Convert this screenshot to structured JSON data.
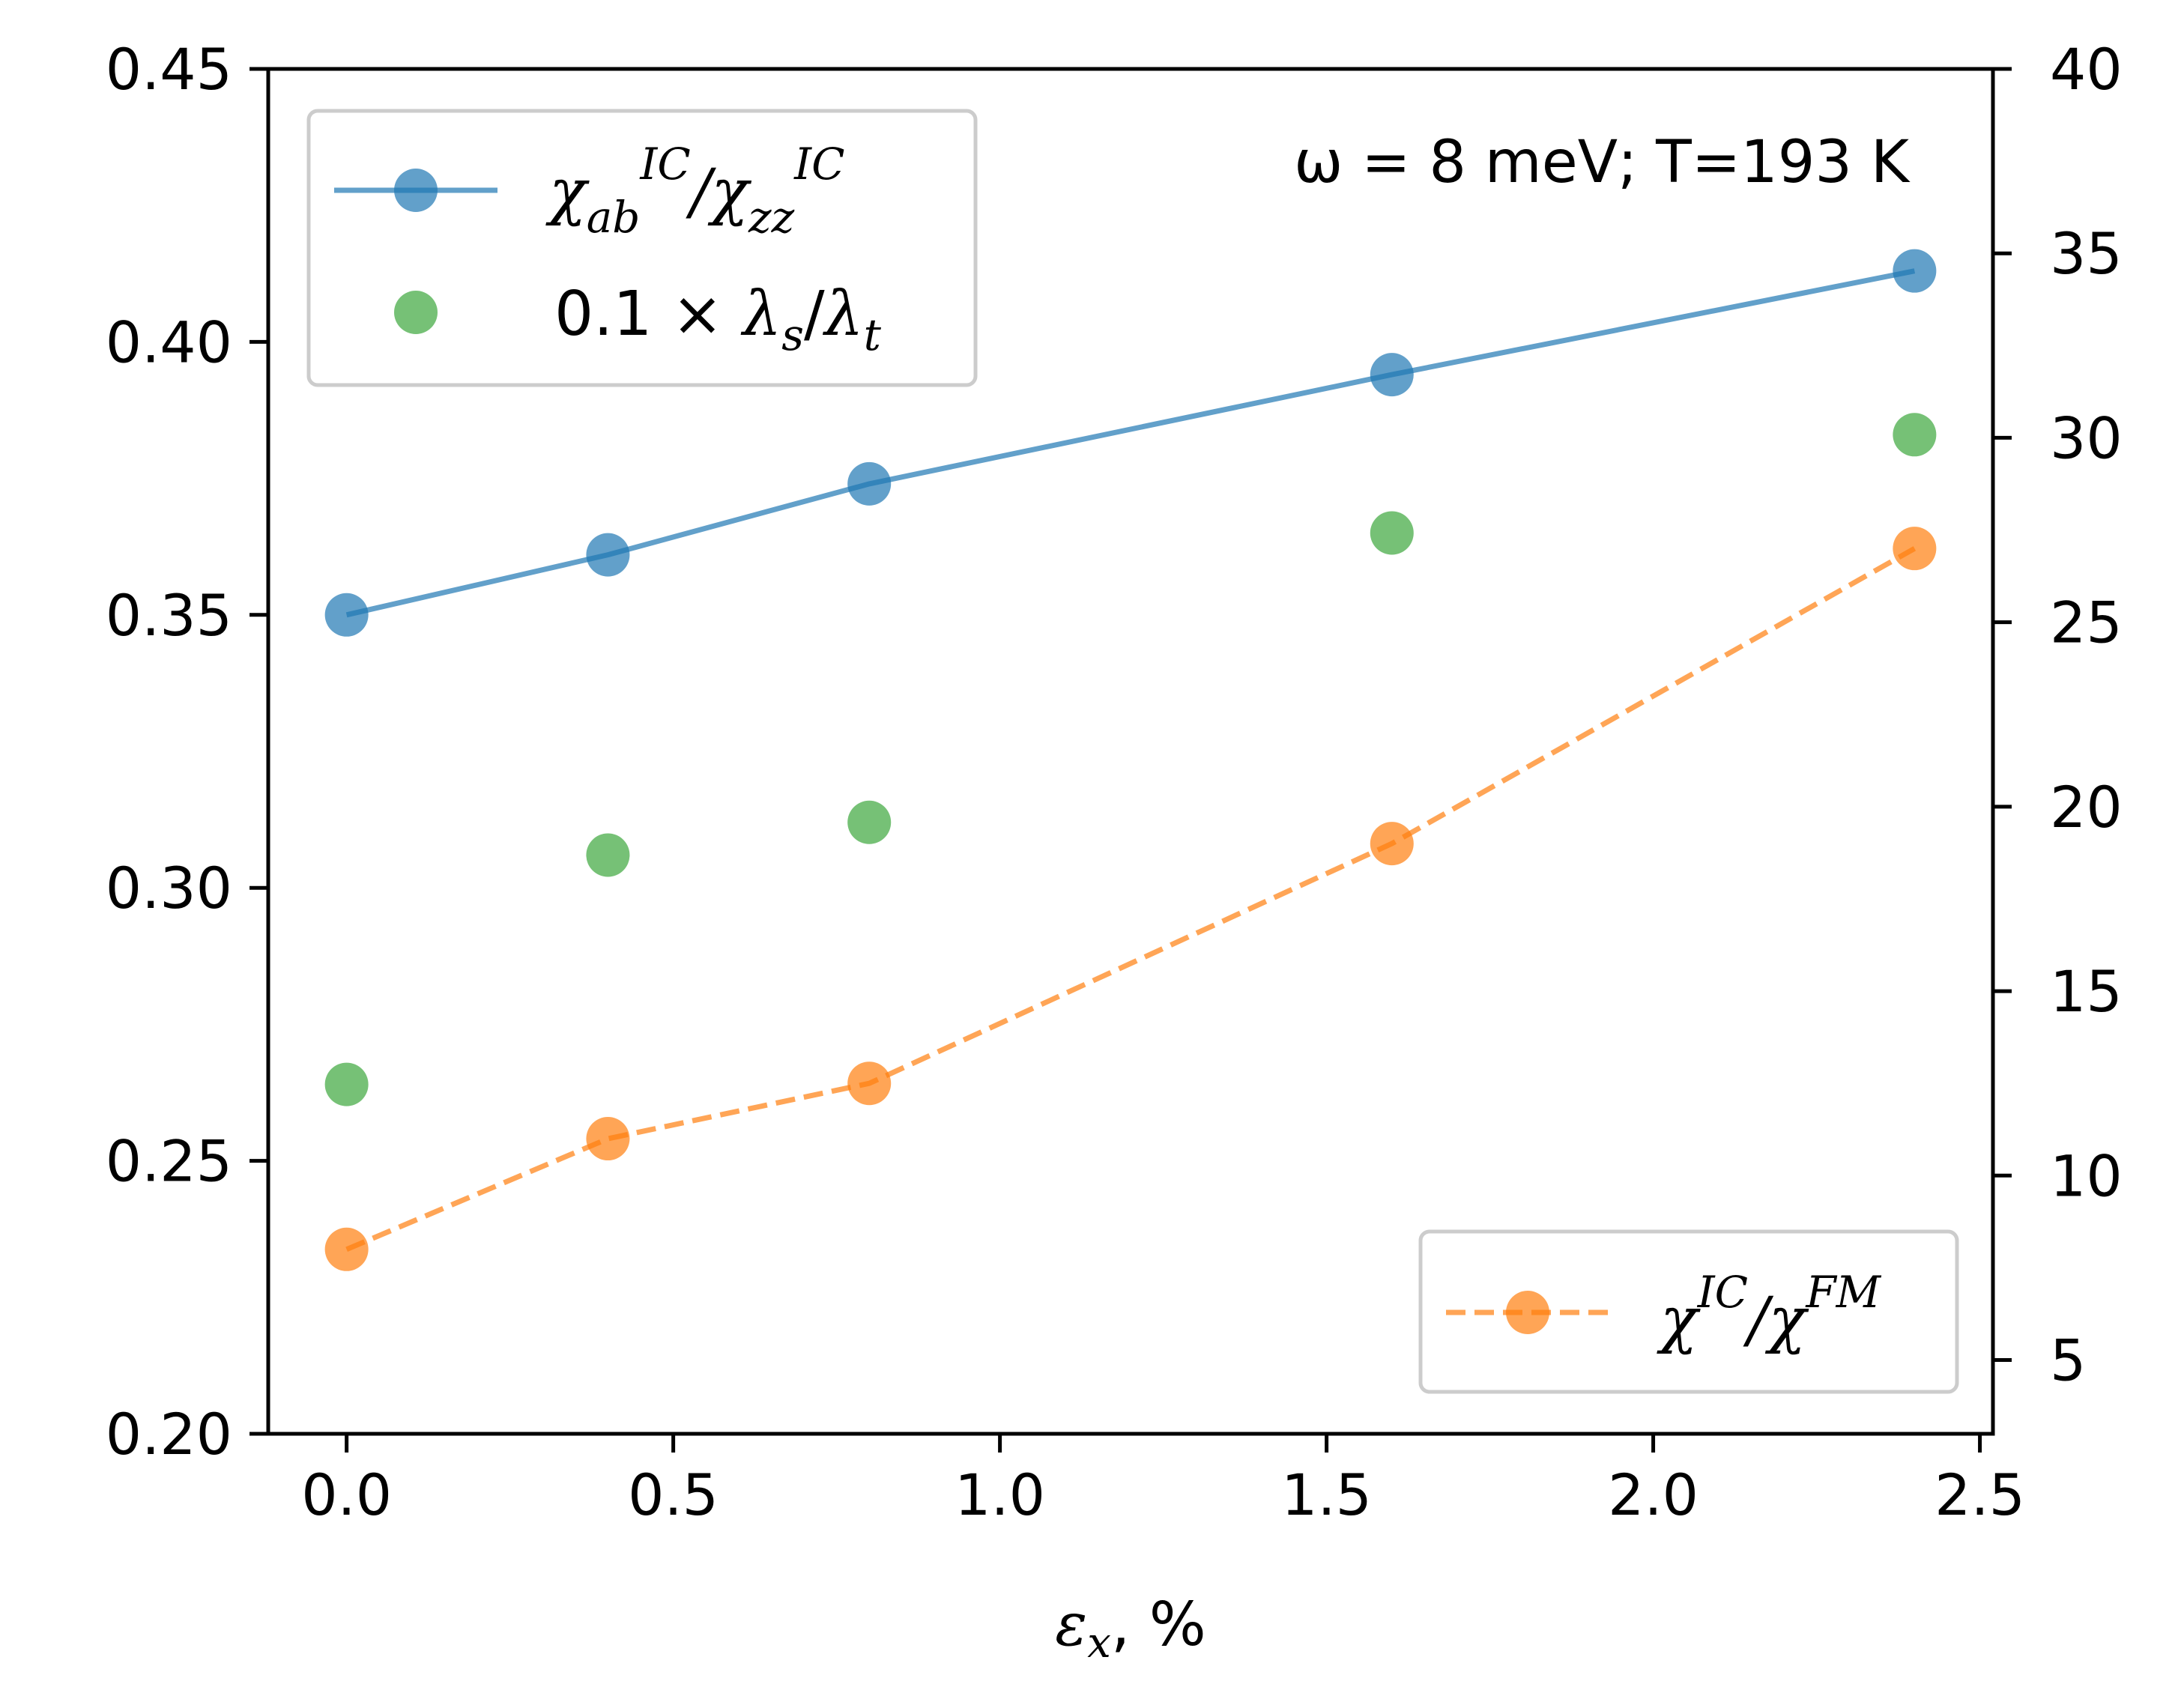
{
  "chart_data": {
    "type": "line",
    "title": "",
    "annotation": "ω = 8 meV; T=193 K",
    "xlabel": "εx, %",
    "xlabel_parts": {
      "symbol": "ε",
      "subscript": "x",
      "suffix": ", %"
    },
    "xlim": [
      -0.12,
      2.52
    ],
    "xticks": [
      0.0,
      0.5,
      1.0,
      1.5,
      2.0,
      2.5
    ],
    "xtick_labels": [
      "0.0",
      "0.5",
      "1.0",
      "1.5",
      "2.0",
      "2.5"
    ],
    "ylim_left": [
      0.2,
      0.45
    ],
    "yticks_left": [
      0.2,
      0.25,
      0.3,
      0.35,
      0.4,
      0.45
    ],
    "ytick_labels_left": [
      "0.20",
      "0.25",
      "0.30",
      "0.35",
      "0.40",
      "0.45"
    ],
    "ylim_right": [
      3,
      40
    ],
    "yticks_right": [
      5,
      10,
      15,
      20,
      25,
      30,
      35,
      40
    ],
    "ytick_labels_right": [
      "5",
      "10",
      "15",
      "20",
      "25",
      "30",
      "35",
      "40"
    ],
    "x": [
      0.0,
      0.4,
      0.8,
      1.6,
      2.4
    ],
    "series": [
      {
        "name": "χ_ab^IC/χ_zz^IC",
        "axis": "left",
        "style": "solid-line-markers",
        "color": "#1f77b4",
        "values": [
          0.35,
          0.361,
          0.374,
          0.394,
          0.413
        ]
      },
      {
        "name": "0.1 × λs/λt",
        "axis": "left",
        "style": "markers",
        "color": "#2ca02c",
        "values": [
          0.264,
          0.306,
          0.312,
          0.365,
          0.383
        ]
      },
      {
        "name": "χ^IC/χ^FM",
        "axis": "right",
        "style": "dashed-line-markers",
        "color": "#ff7f0e",
        "values": [
          8.0,
          11.0,
          12.5,
          19.0,
          27.0
        ]
      }
    ],
    "legends": [
      {
        "placement": "upper-left",
        "entries": [
          "χ_ab^IC/χ_zz^IC",
          "0.1 × λs/λt"
        ]
      },
      {
        "placement": "lower-right",
        "entries": [
          "χ^IC/χ^FM"
        ]
      }
    ]
  }
}
